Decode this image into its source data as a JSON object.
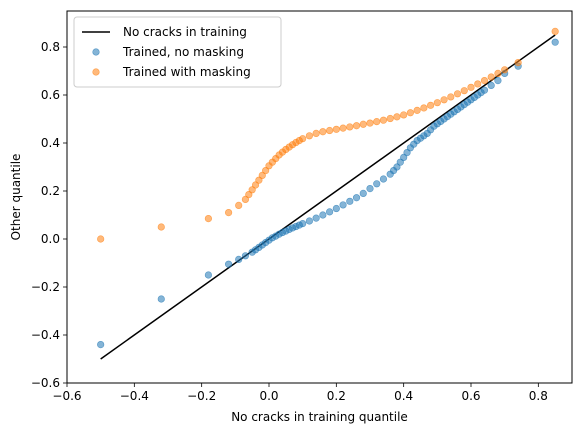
{
  "chart_data": {
    "type": "scatter",
    "xlabel": "No cracks in training quantile",
    "ylabel": "Other quantile",
    "xlim": [
      -0.6,
      0.9
    ],
    "ylim": [
      -0.6,
      0.95
    ],
    "xticks": [
      -0.6,
      -0.4,
      -0.2,
      0.0,
      0.2,
      0.4,
      0.6,
      0.8
    ],
    "yticks": [
      -0.6,
      -0.4,
      -0.2,
      0.0,
      0.2,
      0.4,
      0.6,
      0.8
    ],
    "xtick_labels": [
      "−0.6",
      "−0.4",
      "−0.2",
      "0.0",
      "0.2",
      "0.4",
      "0.6",
      "0.8"
    ],
    "ytick_labels": [
      "−0.6",
      "−0.4",
      "−0.2",
      "0.0",
      "0.2",
      "0.4",
      "0.6",
      "0.8"
    ],
    "grid": false,
    "legend_position": "top-left",
    "reference_line": {
      "name": "No cracks in training",
      "color": "#000000",
      "x": [
        -0.5,
        0.85
      ],
      "y": [
        -0.5,
        0.85
      ]
    },
    "series": [
      {
        "name": "Trained, no masking",
        "color": "#1f77b4",
        "x": [
          -0.5,
          -0.32,
          -0.18,
          -0.12,
          -0.09,
          -0.07,
          -0.05,
          -0.04,
          -0.03,
          -0.02,
          -0.01,
          0.0,
          0.01,
          0.02,
          0.03,
          0.04,
          0.05,
          0.06,
          0.07,
          0.08,
          0.09,
          0.1,
          0.12,
          0.14,
          0.16,
          0.18,
          0.2,
          0.22,
          0.24,
          0.26,
          0.28,
          0.3,
          0.32,
          0.34,
          0.36,
          0.37,
          0.38,
          0.39,
          0.4,
          0.41,
          0.42,
          0.43,
          0.44,
          0.45,
          0.46,
          0.47,
          0.48,
          0.49,
          0.5,
          0.51,
          0.52,
          0.53,
          0.54,
          0.55,
          0.56,
          0.57,
          0.58,
          0.59,
          0.6,
          0.61,
          0.62,
          0.63,
          0.64,
          0.66,
          0.68,
          0.7,
          0.74,
          0.85
        ],
        "y": [
          -0.44,
          -0.25,
          -0.15,
          -0.105,
          -0.085,
          -0.07,
          -0.055,
          -0.045,
          -0.035,
          -0.025,
          -0.015,
          -0.005,
          0.005,
          0.012,
          0.02,
          0.027,
          0.033,
          0.04,
          0.046,
          0.052,
          0.058,
          0.064,
          0.075,
          0.087,
          0.1,
          0.113,
          0.127,
          0.142,
          0.157,
          0.172,
          0.19,
          0.21,
          0.23,
          0.25,
          0.27,
          0.285,
          0.3,
          0.32,
          0.34,
          0.36,
          0.38,
          0.395,
          0.41,
          0.42,
          0.43,
          0.44,
          0.455,
          0.47,
          0.48,
          0.49,
          0.5,
          0.51,
          0.52,
          0.53,
          0.54,
          0.55,
          0.56,
          0.57,
          0.58,
          0.59,
          0.6,
          0.61,
          0.62,
          0.64,
          0.66,
          0.69,
          0.72,
          0.82
        ]
      },
      {
        "name": "Trained with masking",
        "color": "#ff7f0e",
        "x": [
          -0.5,
          -0.32,
          -0.18,
          -0.12,
          -0.09,
          -0.07,
          -0.06,
          -0.05,
          -0.04,
          -0.03,
          -0.02,
          -0.01,
          0.0,
          0.01,
          0.02,
          0.03,
          0.04,
          0.05,
          0.06,
          0.07,
          0.08,
          0.09,
          0.1,
          0.12,
          0.14,
          0.16,
          0.18,
          0.2,
          0.22,
          0.24,
          0.26,
          0.28,
          0.3,
          0.32,
          0.34,
          0.36,
          0.38,
          0.4,
          0.42,
          0.44,
          0.46,
          0.48,
          0.5,
          0.52,
          0.54,
          0.56,
          0.58,
          0.6,
          0.62,
          0.64,
          0.66,
          0.68,
          0.7,
          0.74,
          0.85
        ],
        "y": [
          0.0,
          0.05,
          0.085,
          0.11,
          0.14,
          0.165,
          0.185,
          0.205,
          0.225,
          0.245,
          0.265,
          0.285,
          0.305,
          0.32,
          0.335,
          0.35,
          0.362,
          0.373,
          0.383,
          0.393,
          0.402,
          0.41,
          0.418,
          0.43,
          0.44,
          0.447,
          0.452,
          0.457,
          0.462,
          0.467,
          0.472,
          0.478,
          0.483,
          0.489,
          0.495,
          0.502,
          0.509,
          0.517,
          0.526,
          0.536,
          0.546,
          0.557,
          0.568,
          0.58,
          0.592,
          0.605,
          0.618,
          0.632,
          0.646,
          0.66,
          0.675,
          0.69,
          0.705,
          0.735,
          0.865
        ]
      }
    ]
  }
}
